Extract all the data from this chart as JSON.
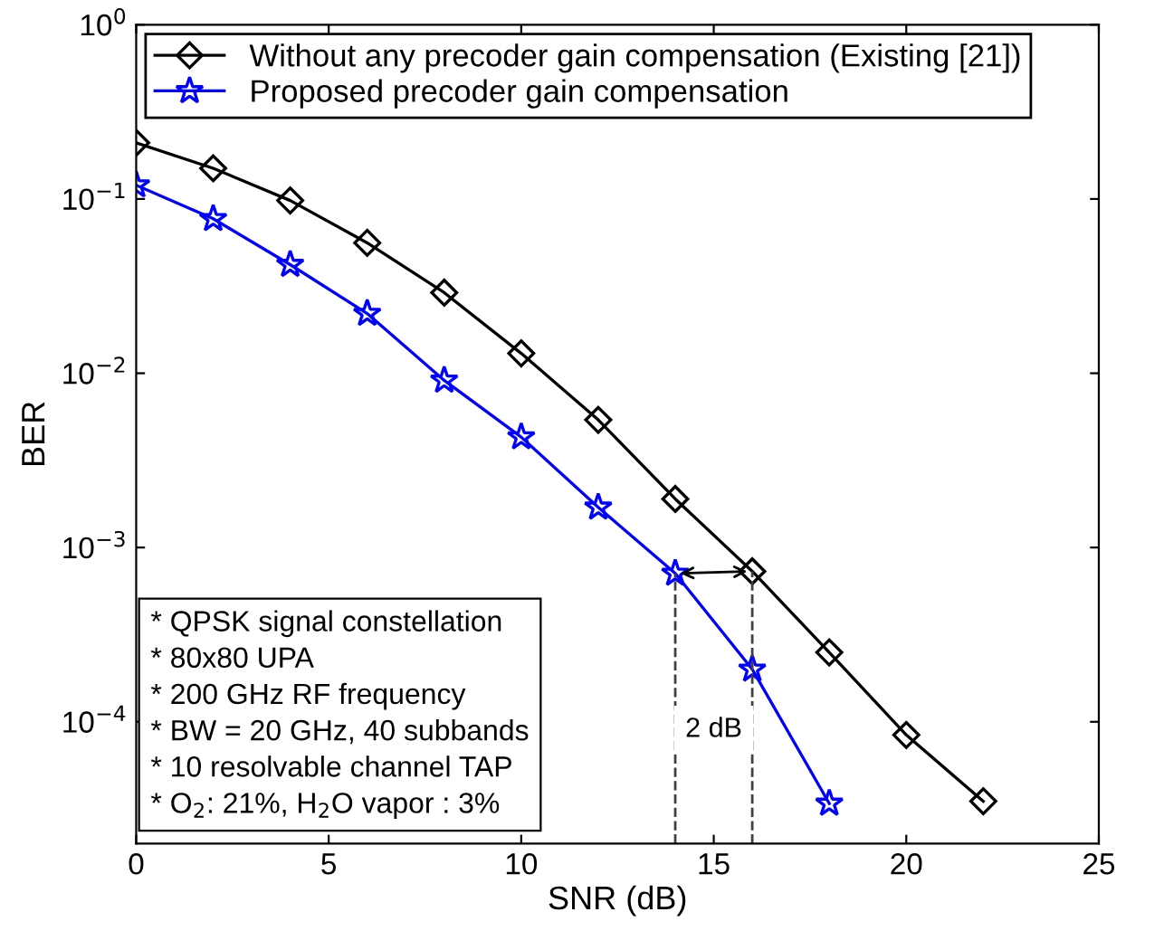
{
  "chart_data": {
    "type": "line",
    "xlabel": "SNR (dB)",
    "ylabel": "BER",
    "log": "y",
    "xlim": [
      0,
      25
    ],
    "xticks": [
      0,
      5,
      10,
      15,
      20,
      25
    ],
    "ylim": [
      2e-05,
      1
    ],
    "yticks": [
      {
        "value": 1,
        "label": "10$^{0}$"
      },
      {
        "value": 0.1,
        "label": "10$^{−1}$"
      },
      {
        "value": 0.01,
        "label": "10$^{−2}$"
      },
      {
        "value": 0.001,
        "label": "10$^{−3}$"
      },
      {
        "value": 0.0001,
        "label": "10$^{−4}$"
      }
    ],
    "grid": false,
    "legend": "top",
    "series": [
      {
        "name": "Without any precoder gain compensation (Existing [21])",
        "color": "#000000",
        "marker": "diamond",
        "line_style": "solid",
        "x": [
          0,
          2,
          4,
          6,
          8,
          10,
          12,
          14,
          16,
          18,
          20,
          22
        ],
        "values": [
          0.21,
          0.15,
          0.098,
          0.056,
          0.029,
          0.013,
          0.0054,
          0.0019,
          0.00073,
          0.00025,
          8.4e-05,
          3.5e-05
        ]
      },
      {
        "name": "Proposed precoder gain compensation",
        "color": "#0000ff",
        "marker": "star",
        "line_style": "solid",
        "x": [
          0,
          2,
          4,
          6,
          8,
          10,
          12,
          14,
          16,
          18
        ],
        "values": [
          0.12,
          0.077,
          0.042,
          0.022,
          0.0091,
          0.0043,
          0.0017,
          0.00071,
          0.0002,
          3.4e-05
        ]
      },
      {
        "color": "#404040",
        "marker": "none",
        "line_style": "dashed",
        "x": [
          14,
          14
        ],
        "values": [
          2e-05,
          0.00071
        ]
      },
      {
        "color": "#404040",
        "marker": "none",
        "line_style": "dashed",
        "x": [
          16,
          16
        ],
        "values": [
          2e-05,
          0.00073
        ]
      }
    ],
    "annotations": [
      {
        "text": "2 dB",
        "x": 15,
        "y": 9e-05
      },
      "* QPSK signal constellation\n* 80x80 UPA\n* 200 GHz RF frequency\n* BW = 20 GHz, 40 subbands\n* 10 resolvable channel TAP\n* O$_{2}$: 21%, H$_{2}$O vapor : 3%"
    ]
  }
}
